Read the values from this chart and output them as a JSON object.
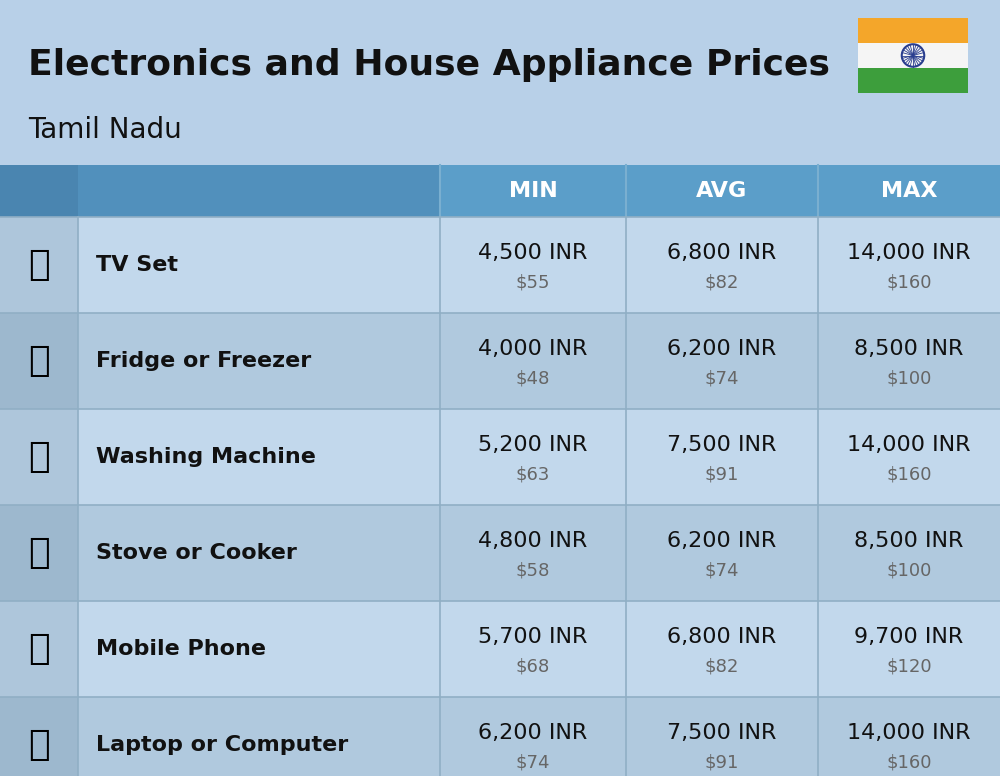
{
  "title": "Electronics and House Appliance Prices",
  "subtitle": "Tamil Nadu",
  "background_color": "#b8d0e8",
  "header_bg_color": "#5b9ec9",
  "header_icon_col_color": "#4a85b0",
  "header_name_col_color": "#5190bc",
  "header_text_color": "#ffffff",
  "row_colors": [
    "#c2d8ec",
    "#b0c9de"
  ],
  "icon_col_colors": [
    "#aec6db",
    "#9db8ce"
  ],
  "divider_color": "#90afc5",
  "col_headers": [
    "MIN",
    "AVG",
    "MAX"
  ],
  "items": [
    {
      "name": "TV Set",
      "min_inr": "4,500 INR",
      "min_usd": "$55",
      "avg_inr": "6,800 INR",
      "avg_usd": "$82",
      "max_inr": "14,000 INR",
      "max_usd": "$160"
    },
    {
      "name": "Fridge or Freezer",
      "min_inr": "4,000 INR",
      "min_usd": "$48",
      "avg_inr": "6,200 INR",
      "avg_usd": "$74",
      "max_inr": "8,500 INR",
      "max_usd": "$100"
    },
    {
      "name": "Washing Machine",
      "min_inr": "5,200 INR",
      "min_usd": "$63",
      "avg_inr": "7,500 INR",
      "avg_usd": "$91",
      "max_inr": "14,000 INR",
      "max_usd": "$160"
    },
    {
      "name": "Stove or Cooker",
      "min_inr": "4,800 INR",
      "min_usd": "$58",
      "avg_inr": "6,200 INR",
      "avg_usd": "$74",
      "max_inr": "8,500 INR",
      "max_usd": "$100"
    },
    {
      "name": "Mobile Phone",
      "min_inr": "5,700 INR",
      "min_usd": "$68",
      "avg_inr": "6,800 INR",
      "avg_usd": "$82",
      "max_inr": "9,700 INR",
      "max_usd": "$120"
    },
    {
      "name": "Laptop or Computer",
      "min_inr": "6,200 INR",
      "min_usd": "$74",
      "avg_inr": "7,500 INR",
      "avg_usd": "$91",
      "max_inr": "14,000 INR",
      "max_usd": "$160"
    }
  ],
  "title_fontsize": 26,
  "subtitle_fontsize": 20,
  "header_fontsize": 16,
  "name_fontsize": 16,
  "inr_fontsize": 16,
  "usd_fontsize": 13,
  "flag_orange": "#f4a62a",
  "flag_white": "#f5f5f5",
  "flag_green": "#3d9e3c",
  "flag_blue": "#2a3e8f"
}
